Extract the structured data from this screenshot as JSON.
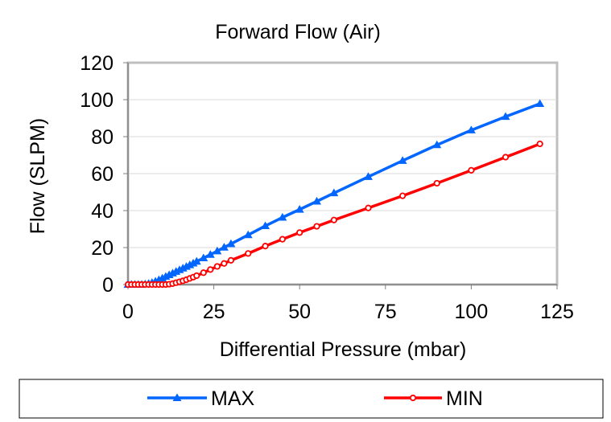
{
  "chart_data": {
    "type": "line",
    "title": "Forward Flow (Air)",
    "xlabel": "Differential Pressure (mbar)",
    "ylabel": "Flow (SLPM)",
    "xlim": [
      0,
      125
    ],
    "ylim": [
      0,
      120
    ],
    "xticks": [
      0,
      25,
      50,
      75,
      100,
      125
    ],
    "yticks": [
      0,
      20,
      40,
      60,
      80,
      100,
      120
    ],
    "grid": "horizontal",
    "legend": "bottom",
    "series": [
      {
        "name": "MAX",
        "color": "#0066FF",
        "marker": "triangle",
        "x": [
          0,
          1,
          2,
          3,
          4,
          5,
          6,
          7,
          8,
          9,
          10,
          11,
          12,
          13,
          14,
          15,
          16,
          17,
          18,
          19,
          20,
          22,
          24,
          26,
          28,
          30,
          35,
          40,
          45,
          50,
          55,
          60,
          70,
          80,
          90,
          100,
          110,
          120
        ],
        "y": [
          0,
          0,
          0,
          0,
          0,
          0.2,
          0.5,
          1,
          1.7,
          2.5,
          3.4,
          4.3,
          5.2,
          6.1,
          7,
          7.9,
          8.8,
          9.7,
          10.6,
          11.5,
          12.5,
          14.3,
          16.2,
          18.1,
          20.1,
          22,
          26.8,
          31.7,
          36.3,
          40.6,
          45,
          49.5,
          58.3,
          67,
          75.5,
          83.5,
          90.8,
          97.8
        ]
      },
      {
        "name": "MIN",
        "color": "#FF0000",
        "marker": "circle",
        "x": [
          0,
          1,
          2,
          3,
          4,
          5,
          6,
          7,
          8,
          9,
          10,
          11,
          12,
          13,
          14,
          15,
          16,
          17,
          18,
          19,
          20,
          22,
          24,
          26,
          28,
          30,
          35,
          40,
          45,
          50,
          55,
          60,
          70,
          80,
          90,
          100,
          110,
          120
        ],
        "y": [
          0,
          0,
          0,
          0,
          0,
          0,
          0,
          0,
          0,
          0,
          0,
          0,
          0.2,
          0.5,
          1,
          1.5,
          2,
          2.6,
          3.3,
          4,
          4.8,
          6.4,
          8.1,
          9.8,
          11.4,
          13.1,
          16.8,
          20.8,
          24.5,
          28.1,
          31.5,
          34.9,
          41.4,
          48,
          54.8,
          61.8,
          68.9,
          76.1
        ]
      }
    ]
  }
}
